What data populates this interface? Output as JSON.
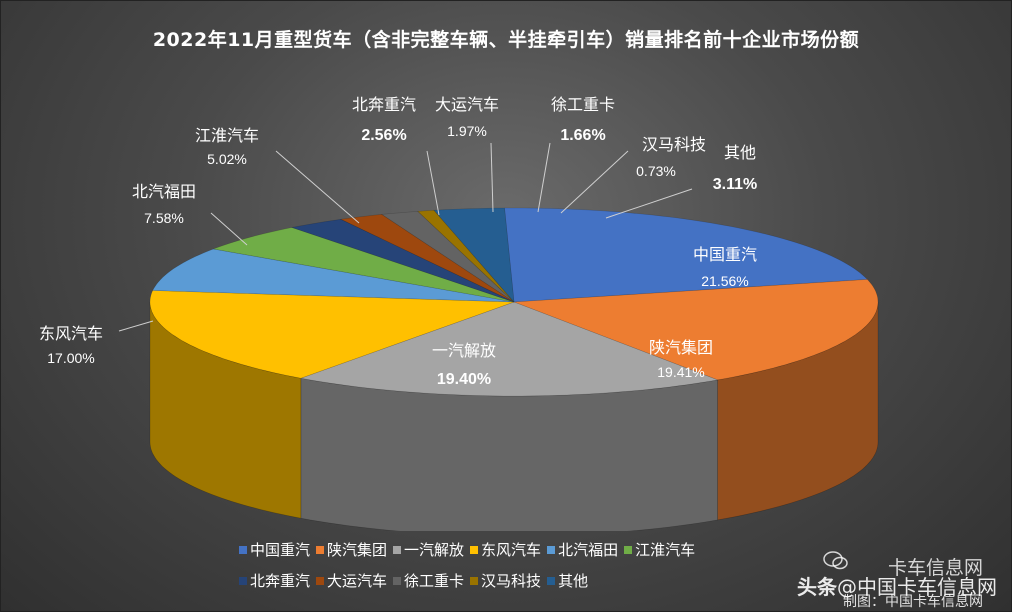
{
  "chart_data": {
    "type": "pie",
    "title": "2022年11月重型货车（含非完整车辆、半挂牵引车）销量排名前十企业市场份额",
    "slices": [
      {
        "name": "中国重汽",
        "value_label": "21.56%",
        "value": 21.56,
        "color": "#4472C4",
        "bold": false
      },
      {
        "name": "陕汽集团",
        "value_label": "19.41%",
        "value": 19.41,
        "color": "#ED7D31",
        "bold": false
      },
      {
        "name": "一汽解放",
        "value_label": "19.40%",
        "value": 19.4,
        "color": "#A5A5A5",
        "bold": true
      },
      {
        "name": "东风汽车",
        "value_label": "17.00%",
        "value": 17.0,
        "color": "#FFC000",
        "bold": false
      },
      {
        "name": "北汽福田",
        "value_label": "7.58%",
        "value": 7.58,
        "color": "#5B9BD5",
        "bold": false
      },
      {
        "name": "江淮汽车",
        "value_label": "5.02%",
        "value": 5.02,
        "color": "#70AD47",
        "bold": false
      },
      {
        "name": "北奔重汽",
        "value_label": "2.56%",
        "value": 2.56,
        "color": "#264478",
        "bold": true
      },
      {
        "name": "大运汽车",
        "value_label": "1.97%",
        "value": 1.97,
        "color": "#9E480E",
        "bold": false
      },
      {
        "name": "徐工重卡",
        "value_label": "1.66%",
        "value": 1.66,
        "color": "#636363",
        "bold": true
      },
      {
        "name": "汉马科技",
        "value_label": "0.73%",
        "value": 0.73,
        "color": "#997300",
        "bold": false
      },
      {
        "name": "其他",
        "value_label": "3.11%",
        "value": 3.11,
        "color": "#255E91",
        "bold": true
      }
    ],
    "legend_placement": "bottom"
  },
  "watermark": {
    "line1": "卡车信息网",
    "line2_prefix": "头条",
    "line2_rest": "@中国卡车信息网",
    "line3": "制图：中国卡车信息网"
  }
}
